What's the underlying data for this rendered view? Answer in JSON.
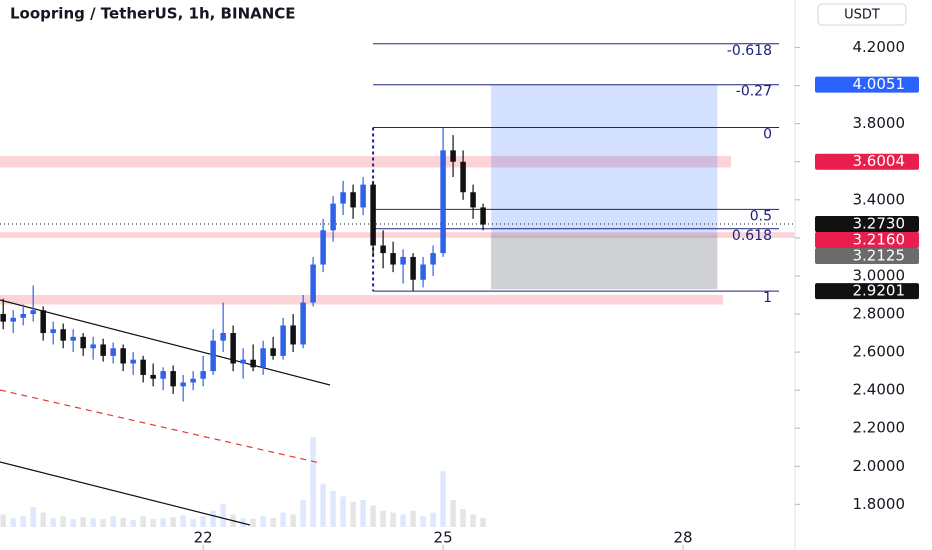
{
  "chart_data": {
    "type": "candlestick",
    "title": "Loopring / TetherUS, 1h, BINANCE",
    "currency": "USDT",
    "up_color": "#2f62e6",
    "down_color": "#111111",
    "xlim": [
      19.46,
      29.4
    ],
    "xticks": [
      22,
      25,
      28
    ],
    "ylim": [
      1.56,
      4.45
    ],
    "yticks": [
      {
        "value": 1.8,
        "label": "1.8000"
      },
      {
        "value": 2.0,
        "label": "2.0000"
      },
      {
        "value": 2.2,
        "label": "2.2000"
      },
      {
        "value": 2.4,
        "label": "2.4000"
      },
      {
        "value": 2.6,
        "label": "2.6000"
      },
      {
        "value": 2.8,
        "label": "2.8000"
      },
      {
        "value": 3.0,
        "label": "3.0000"
      },
      {
        "value": 3.2,
        "label": "3.2000"
      },
      {
        "value": 3.4,
        "label": "3.4000"
      },
      {
        "value": 3.6,
        "label": "3.6000"
      },
      {
        "value": 3.8,
        "label": "3.8000"
      },
      {
        "value": 4.0,
        "label": "4.0000"
      },
      {
        "value": 4.2,
        "label": "4.2000"
      }
    ],
    "x": [
      19.5,
      19.625,
      19.75,
      19.875,
      20,
      20.125,
      20.25,
      20.375,
      20.5,
      20.625,
      20.75,
      20.875,
      21,
      21.125,
      21.25,
      21.375,
      21.5,
      21.625,
      21.75,
      21.875,
      22,
      22.125,
      22.25,
      22.375,
      22.5,
      22.625,
      22.75,
      22.875,
      23,
      23.125,
      23.25,
      23.375,
      23.5,
      23.625,
      23.75,
      23.875,
      24,
      24.125,
      24.25,
      24.375,
      24.5,
      24.625,
      24.75,
      24.875,
      25,
      25.125,
      25.25,
      25.375,
      25.5
    ],
    "open": [
      2.8,
      2.76,
      2.78,
      2.8,
      2.82,
      2.7,
      2.72,
      2.66,
      2.68,
      2.62,
      2.64,
      2.58,
      2.62,
      2.54,
      2.56,
      2.48,
      2.46,
      2.5,
      2.42,
      2.44,
      2.46,
      2.5,
      2.66,
      2.7,
      2.54,
      2.56,
      2.52,
      2.62,
      2.58,
      2.74,
      2.64,
      2.86,
      3.06,
      3.24,
      3.38,
      3.44,
      3.36,
      3.48,
      3.16,
      3.12,
      3.06,
      3.1,
      2.98,
      3.06,
      3.12,
      3.66,
      3.6,
      3.44,
      3.36
    ],
    "high": [
      2.88,
      2.82,
      2.85,
      2.95,
      2.84,
      2.76,
      2.75,
      2.72,
      2.7,
      2.68,
      2.67,
      2.65,
      2.64,
      2.6,
      2.58,
      2.54,
      2.52,
      2.53,
      2.48,
      2.5,
      2.58,
      2.72,
      2.86,
      2.74,
      2.62,
      2.64,
      2.66,
      2.68,
      2.78,
      2.8,
      2.9,
      3.1,
      3.3,
      3.42,
      3.5,
      3.48,
      3.52,
      3.5,
      3.24,
      3.18,
      3.14,
      3.12,
      3.1,
      3.16,
      3.78,
      3.74,
      3.66,
      3.48,
      3.38
    ],
    "low": [
      2.72,
      2.7,
      2.74,
      2.76,
      2.66,
      2.64,
      2.62,
      2.6,
      2.58,
      2.56,
      2.55,
      2.54,
      2.5,
      2.48,
      2.44,
      2.42,
      2.4,
      2.38,
      2.34,
      2.4,
      2.42,
      2.48,
      2.6,
      2.5,
      2.46,
      2.5,
      2.48,
      2.56,
      2.56,
      2.6,
      2.62,
      2.84,
      3.02,
      3.18,
      3.32,
      3.3,
      3.32,
      3.1,
      3.04,
      3.02,
      2.96,
      2.92,
      2.94,
      3.0,
      3.1,
      3.52,
      3.4,
      3.3,
      3.24
    ],
    "close": [
      2.76,
      2.78,
      2.8,
      2.82,
      2.7,
      2.72,
      2.66,
      2.68,
      2.62,
      2.64,
      2.58,
      2.62,
      2.54,
      2.56,
      2.48,
      2.46,
      2.5,
      2.42,
      2.44,
      2.46,
      2.5,
      2.66,
      2.7,
      2.54,
      2.56,
      2.52,
      2.62,
      2.58,
      2.74,
      2.64,
      2.86,
      3.06,
      3.24,
      3.38,
      3.44,
      3.36,
      3.48,
      3.16,
      3.12,
      3.06,
      3.1,
      2.98,
      3.06,
      3.12,
      3.66,
      3.6,
      3.44,
      3.36,
      3.27
    ],
    "volume": [
      14,
      10,
      12,
      22,
      16,
      10,
      12,
      9,
      11,
      10,
      9,
      12,
      10,
      8,
      12,
      9,
      10,
      11,
      13,
      9,
      12,
      18,
      26,
      14,
      10,
      9,
      12,
      10,
      16,
      14,
      30,
      100,
      48,
      40,
      34,
      28,
      30,
      24,
      18,
      16,
      14,
      18,
      12,
      16,
      62,
      30,
      20,
      14,
      10
    ],
    "fib_levels": [
      {
        "ratio": -0.618,
        "price": 4.22
      },
      {
        "ratio": -0.27,
        "price": 4.005
      },
      {
        "ratio": 0,
        "price": 3.78
      },
      {
        "ratio": 0.5,
        "price": 3.35
      },
      {
        "ratio": 0.618,
        "price": 3.248
      },
      {
        "ratio": 1,
        "price": 2.92
      }
    ],
    "fib_x": [
      24.125,
      29.2
    ],
    "zones": [
      {
        "low": 3.57,
        "high": 3.63,
        "x0": 19.46,
        "x1": 28.6
      },
      {
        "low": 3.2,
        "high": 3.23,
        "x0": 19.46,
        "x1": 29.4
      },
      {
        "low": 2.85,
        "high": 2.9,
        "x0": 19.46,
        "x1": 28.5
      }
    ],
    "position": {
      "target": 4.0051,
      "entry": 3.216,
      "stop": 2.93,
      "x0": 25.6,
      "x1": 28.43
    },
    "current_price": 3.273,
    "price_labels": [
      {
        "value": 4.0051,
        "label": "4.0051",
        "color": "#2962ff"
      },
      {
        "value": 3.6004,
        "label": "3.6004",
        "color": "#e91e4c"
      },
      {
        "value": 3.273,
        "label": "3.2730",
        "color": "#111111"
      },
      {
        "value": 3.216,
        "label": "3.2160",
        "color": "#e91e4c"
      },
      {
        "value": 3.2125,
        "label": "3.2125",
        "color": "#6b6b6b"
      },
      {
        "value": 2.9201,
        "label": "2.9201",
        "color": "#111111"
      }
    ]
  }
}
